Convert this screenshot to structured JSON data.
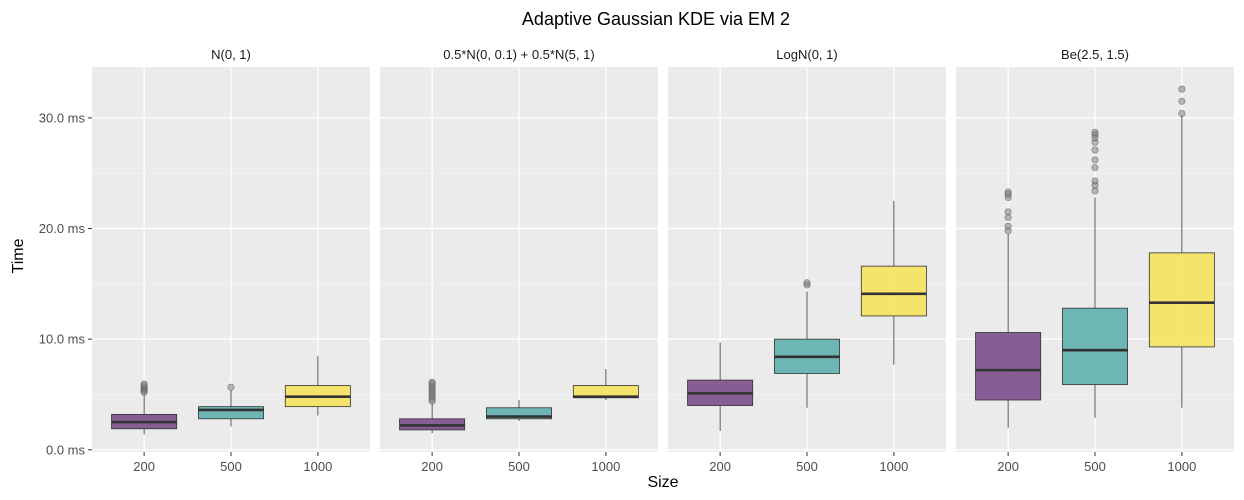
{
  "chart_data": {
    "type": "boxplot",
    "title": "Adaptive Gaussian KDE via EM 2",
    "xlabel": "Size",
    "ylabel": "Time",
    "categories": [
      "200",
      "500",
      "1000"
    ],
    "y_ticks": [
      0,
      10,
      20,
      30
    ],
    "y_tick_labels": [
      "0.0 ms",
      "10.0 ms",
      "20.0 ms",
      "30.0 ms"
    ],
    "ylim": [
      -0.2,
      34.6
    ],
    "grid": true,
    "colors": [
      "#7b4f8c",
      "#5fb0ae",
      "#f5e35e"
    ],
    "panels": [
      {
        "label": "N(0, 1)",
        "boxes": [
          {
            "category": "200",
            "whisker_low": 1.4,
            "q1": 1.9,
            "median": 2.5,
            "q3": 3.2,
            "whisker_high": 5.0,
            "outliers": [
              5.2,
              5.35,
              5.5,
              5.65,
              5.8,
              5.95
            ]
          },
          {
            "category": "500",
            "whisker_low": 2.1,
            "q1": 2.8,
            "median": 3.6,
            "q3": 3.9,
            "whisker_high": 5.4,
            "outliers": [
              5.65
            ]
          },
          {
            "category": "1000",
            "whisker_low": 3.1,
            "q1": 3.9,
            "median": 4.8,
            "q3": 5.8,
            "whisker_high": 8.5,
            "outliers": []
          }
        ]
      },
      {
        "label": "0.5*N(0, 0.1) + 0.5*N(5, 1)",
        "boxes": [
          {
            "category": "200",
            "whisker_low": 1.5,
            "q1": 1.8,
            "median": 2.2,
            "q3": 2.8,
            "whisker_high": 4.2,
            "outliers": [
              4.4,
              4.6,
              4.8,
              5.0,
              5.2,
              5.4,
              5.6,
              5.8,
              6.0,
              6.1
            ]
          },
          {
            "category": "500",
            "whisker_low": 2.6,
            "q1": 2.8,
            "median": 3.0,
            "q3": 3.8,
            "whisker_high": 4.5,
            "outliers": []
          },
          {
            "category": "1000",
            "whisker_low": 4.5,
            "q1": 4.7,
            "median": 4.8,
            "q3": 5.8,
            "whisker_high": 7.3,
            "outliers": []
          }
        ]
      },
      {
        "label": "LogN(0, 1)",
        "boxes": [
          {
            "category": "200",
            "whisker_low": 1.7,
            "q1": 4.0,
            "median": 5.1,
            "q3": 6.3,
            "whisker_high": 9.7,
            "outliers": []
          },
          {
            "category": "500",
            "whisker_low": 3.8,
            "q1": 6.9,
            "median": 8.4,
            "q3": 10.0,
            "whisker_high": 14.3,
            "outliers": [
              14.9,
              15.1
            ]
          },
          {
            "category": "1000",
            "whisker_low": 7.7,
            "q1": 12.1,
            "median": 14.1,
            "q3": 16.6,
            "whisker_high": 22.5,
            "outliers": []
          }
        ]
      },
      {
        "label": "Be(2.5, 1.5)",
        "boxes": [
          {
            "category": "200",
            "whisker_low": 2.0,
            "q1": 4.5,
            "median": 7.2,
            "q3": 10.6,
            "whisker_high": 19.5,
            "outliers": [
              19.8,
              20.2,
              21.0,
              21.5,
              22.8,
              23.1,
              23.3
            ]
          },
          {
            "category": "500",
            "whisker_low": 2.9,
            "q1": 5.9,
            "median": 9.0,
            "q3": 12.8,
            "whisker_high": 22.8,
            "outliers": [
              23.4,
              23.9,
              24.3,
              25.5,
              26.2,
              27.1,
              27.8,
              28.2,
              28.5,
              28.7
            ]
          },
          {
            "category": "1000",
            "whisker_low": 3.8,
            "q1": 9.3,
            "median": 13.3,
            "q3": 17.8,
            "whisker_high": 30.2,
            "outliers": [
              30.4,
              31.5,
              32.6
            ]
          }
        ]
      }
    ]
  }
}
